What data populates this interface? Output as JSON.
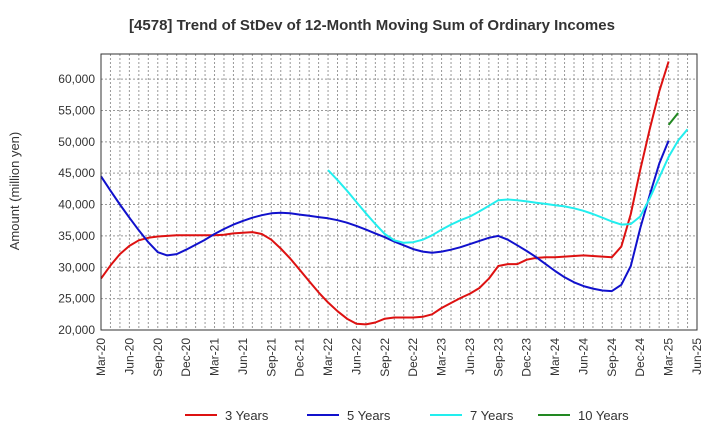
{
  "chart_data": {
    "type": "line",
    "title": "[4578]  Trend of StDev of 12-Month Moving Sum of Ordinary Incomes",
    "xlabel": "",
    "ylabel": "Amount (million yen)",
    "ylim": [
      20000,
      64000
    ],
    "yticks": [
      20000,
      25000,
      30000,
      35000,
      40000,
      45000,
      50000,
      55000,
      60000
    ],
    "ytick_labels": [
      "20,000",
      "25,000",
      "30,000",
      "35,000",
      "40,000",
      "45,000",
      "50,000",
      "55,000",
      "60,000"
    ],
    "x_start": "Mar-20",
    "x_months_span": 63,
    "xticks": [
      "Mar-20",
      "Jun-20",
      "Sep-20",
      "Dec-20",
      "Mar-21",
      "Jun-21",
      "Sep-21",
      "Dec-21",
      "Mar-22",
      "Jun-22",
      "Sep-22",
      "Dec-22",
      "Mar-23",
      "Jun-23",
      "Sep-23",
      "Dec-23",
      "Mar-24",
      "Jun-24",
      "Sep-24",
      "Dec-24",
      "Mar-25",
      "Jun-25"
    ],
    "grid": true,
    "legend_position": "bottom",
    "series": [
      {
        "name": "3 Years",
        "color": "#dd1111",
        "start_month": 0,
        "values": [
          28200,
          30300,
          32100,
          33400,
          34300,
          34700,
          34900,
          35000,
          35100,
          35100,
          35100,
          35100,
          35100,
          35200,
          35400,
          35500,
          35600,
          35300,
          34400,
          33000,
          31400,
          29600,
          27800,
          26000,
          24400,
          23000,
          21800,
          21000,
          20900,
          21200,
          21800,
          22000,
          22000,
          22000,
          22100,
          22500,
          23500,
          24300,
          25100,
          25800,
          26700,
          28200,
          30200,
          30500,
          30500,
          31200,
          31500,
          31600,
          31600,
          31700,
          31800,
          31900,
          31800,
          31700,
          31600,
          33300,
          38500,
          45500,
          52000,
          58000,
          62800
        ]
      },
      {
        "name": "5 Years",
        "color": "#1111cc",
        "start_month": 0,
        "values": [
          44500,
          42200,
          40000,
          37900,
          35900,
          34000,
          32400,
          31900,
          32100,
          32800,
          33600,
          34400,
          35300,
          36100,
          36800,
          37400,
          37900,
          38300,
          38600,
          38700,
          38600,
          38400,
          38200,
          38000,
          37800,
          37500,
          37100,
          36600,
          36000,
          35400,
          34800,
          34100,
          33500,
          32900,
          32500,
          32300,
          32500,
          32800,
          33200,
          33700,
          34200,
          34700,
          35000,
          34400,
          33500,
          32600,
          31600,
          30500,
          29400,
          28400,
          27600,
          27000,
          26600,
          26300,
          26200,
          27200,
          30200,
          36200,
          41500,
          46500,
          50200
        ]
      },
      {
        "name": "7 Years",
        "color": "#22eeee",
        "start_month": 24,
        "values": [
          45500,
          43900,
          42200,
          40400,
          38600,
          36900,
          35300,
          34300,
          33900,
          34000,
          34400,
          35100,
          36000,
          36800,
          37500,
          38100,
          38900,
          39800,
          40700,
          40800,
          40700,
          40500,
          40300,
          40100,
          39900,
          39700,
          39400,
          39000,
          38500,
          37900,
          37300,
          36800,
          36900,
          38100,
          41000,
          44300,
          47600,
          50200,
          52000
        ]
      },
      {
        "name": "10 Years",
        "color": "#228822",
        "start_month": 60,
        "values": [
          52700,
          54600
        ]
      }
    ]
  }
}
